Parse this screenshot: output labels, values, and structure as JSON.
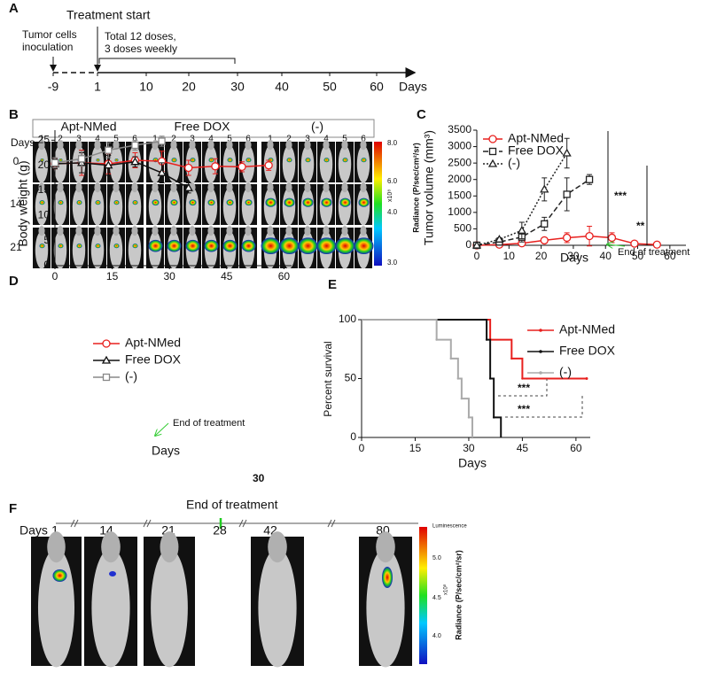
{
  "panels": {
    "A": {
      "letter": "A",
      "treatment_start": "Treatment start",
      "inoculation": [
        "Tumor cells",
        "inoculation"
      ],
      "doses": [
        "Total 12 doses,",
        "3 doses weekly"
      ],
      "ticks": [
        "-9",
        "1",
        "10",
        "20",
        "30",
        "40",
        "50",
        "60"
      ],
      "unit": "Days"
    },
    "B": {
      "letter": "B",
      "groups": [
        "Apt-NMed",
        "Free DOX",
        "(-)"
      ],
      "columns": [
        "1",
        "2",
        "3",
        "4",
        "5",
        "6"
      ],
      "days_label": "Days",
      "rows": [
        "0",
        "14",
        "21"
      ],
      "colorbar": [
        "8.0",
        "6.0",
        "4.0",
        "3.0"
      ],
      "colorbar_unit": "x10⁸",
      "radiance_label": "Radiance (P/sec/cm²/sr)"
    },
    "C": {
      "letter": "C"
    },
    "D": {
      "letter": "D"
    },
    "E": {
      "letter": "E"
    },
    "F": {
      "letter": "F",
      "days_label": "Days",
      "days": [
        "1",
        "14",
        "21",
        "28",
        "42",
        "80"
      ],
      "end_label": "End of treatment",
      "colorbar_title": "Luminescence",
      "colorbar": [
        "5.0",
        "4.5",
        "4.0"
      ],
      "colorbar_unit": "x10⁸",
      "radiance_label": "Radiance (P/sec/cm²/sr)"
    }
  },
  "chart_data": [
    {
      "type": "line",
      "x_label": "Days",
      "y_label": "Tumor volume (mm³)",
      "xlim": [
        0,
        65
      ],
      "ylim": [
        0,
        3500
      ],
      "xticks": [
        0,
        10,
        20,
        30,
        40,
        50,
        60
      ],
      "yticks": [
        0,
        500,
        1000,
        1500,
        2000,
        2500,
        3000,
        3500
      ],
      "series": [
        {
          "name": "Apt-NMed",
          "color": "#e8201e",
          "marker": "circle",
          "dash": "solid",
          "x": [
            0,
            7,
            14,
            21,
            28,
            35,
            42,
            49,
            56
          ],
          "values": [
            0,
            20,
            60,
            150,
            230,
            280,
            230,
            50,
            20
          ],
          "errors": [
            0,
            20,
            30,
            80,
            150,
            300,
            150,
            30,
            20
          ]
        },
        {
          "name": "Free DOX",
          "color": "#222222",
          "marker": "square",
          "dash": "dashed",
          "x": [
            0,
            7,
            14,
            21,
            28,
            35
          ],
          "values": [
            0,
            100,
            250,
            650,
            1550,
            2000
          ],
          "errors": [
            0,
            50,
            150,
            200,
            500,
            150
          ]
        },
        {
          "name": "(-)",
          "color": "#222222",
          "marker": "triangle",
          "dash": "dotted",
          "x": [
            0,
            7,
            14,
            21,
            28
          ],
          "values": [
            0,
            180,
            450,
            1700,
            2800
          ],
          "errors": [
            0,
            50,
            250,
            350,
            450
          ]
        }
      ],
      "annotations": [
        "***",
        "**",
        "End of treatment"
      ]
    },
    {
      "type": "line",
      "x_label": "Days",
      "y_label": "Body weight (g)",
      "xlim": [
        0,
        62
      ],
      "ylim": [
        0,
        27
      ],
      "xticks": [
        0,
        15,
        30,
        45,
        60
      ],
      "yticks": [
        0,
        5,
        10,
        15,
        20,
        25
      ],
      "series": [
        {
          "name": "Apt-NMed",
          "color": "#e8201e",
          "marker": "circle",
          "dash": "solid",
          "x": [
            0,
            7,
            14,
            21,
            28,
            35,
            42,
            49,
            56
          ],
          "values": [
            20.3,
            20.5,
            20.3,
            21,
            20.8,
            19.5,
            19.8,
            19.7,
            20
          ],
          "errors": [
            1,
            2.5,
            2,
            1.5,
            2,
            1.5,
            1.5,
            1,
            1
          ]
        },
        {
          "name": "Free DOX",
          "color": "#111111",
          "marker": "triangle",
          "dash": "solid",
          "x": [
            0,
            7,
            14,
            21,
            28,
            35
          ],
          "values": [
            20.3,
            20.5,
            20,
            20.7,
            18.5,
            15.5
          ],
          "errors": [
            1,
            2,
            2,
            1,
            2,
            1
          ]
        },
        {
          "name": "(-)",
          "color": "#888888",
          "marker": "square",
          "dash": "solid",
          "x": [
            0,
            7,
            14,
            21,
            28
          ],
          "values": [
            20.5,
            21.3,
            23,
            24,
            24.8
          ],
          "errors": [
            1,
            1.5,
            1.5,
            1,
            1
          ]
        }
      ],
      "annotations": [
        "End of treatment",
        "30"
      ]
    },
    {
      "type": "step",
      "x_label": "Days",
      "y_label": "Percent survival",
      "xlim": [
        0,
        64
      ],
      "ylim": [
        0,
        100
      ],
      "xticks": [
        0,
        15,
        30,
        45,
        60
      ],
      "yticks": [
        0,
        50,
        100
      ],
      "series": [
        {
          "name": "Apt-NMed",
          "color": "#e8201e",
          "marker": "none",
          "dash": "solid",
          "x": [
            0,
            36,
            42,
            45,
            63
          ],
          "values": [
            100,
            83,
            67,
            50,
            50
          ]
        },
        {
          "name": "Free DOX",
          "color": "#111111",
          "marker": "none",
          "dash": "solid",
          "x": [
            0,
            35,
            36,
            37,
            39
          ],
          "values": [
            100,
            83,
            50,
            17,
            0
          ]
        },
        {
          "name": "(-)",
          "color": "#aaaaaa",
          "marker": "none",
          "dash": "solid",
          "x": [
            0,
            21,
            25,
            27,
            28,
            30,
            31
          ],
          "values": [
            100,
            83,
            67,
            50,
            33,
            17,
            0
          ]
        }
      ],
      "annotations": [
        "***",
        "***"
      ]
    }
  ]
}
